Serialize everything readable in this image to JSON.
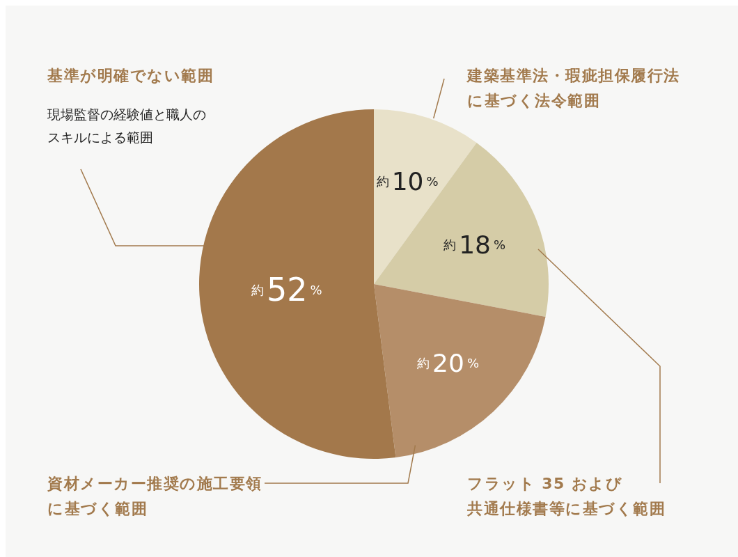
{
  "chart_data": {
    "type": "pie",
    "categories": [
      "建築基準法・瑕疵担保履行法に基づく法令範囲",
      "フラット 35 および共通仕様書等に基づく範囲",
      "資材メーカー推奨の施工要領に基づく範囲",
      "基準が明確でない範囲"
    ],
    "values": [
      10,
      18,
      20,
      52
    ],
    "colors": [
      "#e8e1c9",
      "#d5cca7",
      "#b58e69",
      "#a3784b"
    ],
    "value_labels": [
      "約10%",
      "約18%",
      "約20%",
      "約52%"
    ],
    "annotations": [
      "現場監督の経験値と職人のスキルによる範囲"
    ]
  }
}
